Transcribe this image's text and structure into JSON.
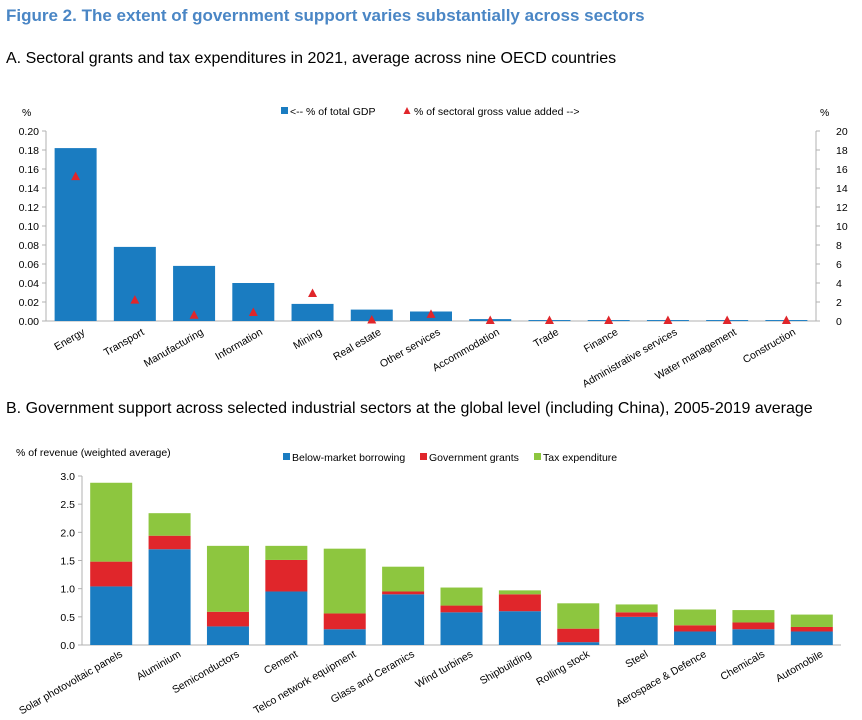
{
  "figure": {
    "title": "Figure 2. The extent of government support varies substantially across sectors"
  },
  "panel_a": {
    "title": "A. Sectoral grants and tax expenditures in 2021, average across nine OECD countries"
  },
  "panel_b": {
    "title": "B. Government support across selected industrial sectors at the global level (including China), 2005-2019 average"
  },
  "colors": {
    "blue": "#1a7cc1",
    "red": "#e0262b",
    "green": "#8dc63f",
    "axis": "#b0b0b0"
  },
  "chart_data": [
    {
      "type": "bar",
      "categories": [
        "Energy",
        "Transport",
        "Manufacturing",
        "Information",
        "Mining",
        "Real estate",
        "Other services",
        "Accommodation",
        "Trade",
        "Finance",
        "Administrative services",
        "Water management",
        "Construction"
      ],
      "series": [
        {
          "name": "<-- % of total GDP",
          "axis": "left",
          "marker": "bar",
          "color": "#1a7cc1",
          "values": [
            0.182,
            0.078,
            0.058,
            0.04,
            0.018,
            0.012,
            0.01,
            0.002,
            0.001,
            0.001,
            0.001,
            0.001,
            0.001
          ]
        },
        {
          "name": "% of sectoral gross value added -->",
          "axis": "right",
          "marker": "triangle",
          "color": "#e0262b",
          "values": [
            15.2,
            2.2,
            0.6,
            0.9,
            2.9,
            0.1,
            0.7,
            0.05,
            0.05,
            0.05,
            0.05,
            0.05,
            0.05
          ]
        }
      ],
      "ylabel_left": "%",
      "ylabel_right": "%",
      "ylim_left": [
        0,
        0.2
      ],
      "ylim_right": [
        0,
        20
      ],
      "yticks_left": [
        "0.00",
        "0.02",
        "0.04",
        "0.06",
        "0.08",
        "0.10",
        "0.12",
        "0.14",
        "0.16",
        "0.18",
        "0.20"
      ],
      "yticks_right": [
        "0",
        "2",
        "4",
        "6",
        "8",
        "10",
        "12",
        "14",
        "16",
        "18",
        "20"
      ],
      "grid": false,
      "legend": "top-center"
    },
    {
      "type": "bar",
      "stacked": true,
      "categories": [
        "Solar photovoltaic panels",
        "Aluminium",
        "Semiconductors",
        "Cement",
        "Telco network equipment",
        "Glass and Ceramics",
        "Wind turbines",
        "Shipbuilding",
        "Rolling stock",
        "Steel",
        "Aerospace & Defence",
        "Chemicals",
        "Automobile"
      ],
      "series": [
        {
          "name": "Below-market borrowing",
          "color": "#1a7cc1",
          "values": [
            1.04,
            1.7,
            0.33,
            0.95,
            0.28,
            0.9,
            0.58,
            0.6,
            0.05,
            0.5,
            0.24,
            0.28,
            0.24
          ]
        },
        {
          "name": "Government grants",
          "color": "#e0262b",
          "values": [
            0.44,
            0.24,
            0.26,
            0.56,
            0.28,
            0.05,
            0.12,
            0.3,
            0.24,
            0.08,
            0.11,
            0.12,
            0.08
          ]
        },
        {
          "name": "Tax expenditure",
          "color": "#8dc63f",
          "values": [
            1.4,
            0.4,
            1.17,
            0.25,
            1.15,
            0.44,
            0.32,
            0.07,
            0.45,
            0.14,
            0.28,
            0.22,
            0.22
          ]
        }
      ],
      "ylabel": "% of revenue (weighted average)",
      "ylim": [
        0,
        3.0
      ],
      "yticks": [
        "0.0",
        "0.5",
        "1.0",
        "1.5",
        "2.0",
        "2.5",
        "3.0"
      ],
      "grid": false,
      "legend": "top-center"
    }
  ]
}
